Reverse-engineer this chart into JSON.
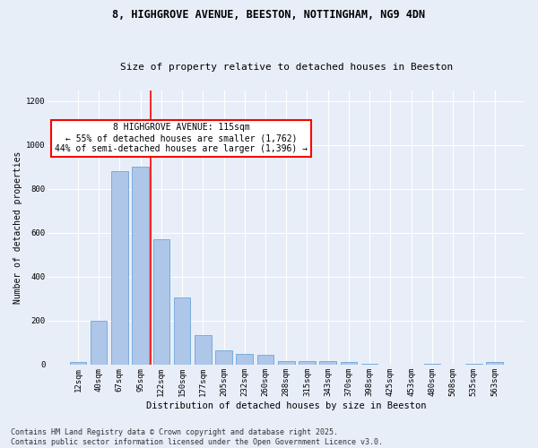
{
  "title1": "8, HIGHGROVE AVENUE, BEESTON, NOTTINGHAM, NG9 4DN",
  "title2": "Size of property relative to detached houses in Beeston",
  "xlabel": "Distribution of detached houses by size in Beeston",
  "ylabel": "Number of detached properties",
  "categories": [
    "12sqm",
    "40sqm",
    "67sqm",
    "95sqm",
    "122sqm",
    "150sqm",
    "177sqm",
    "205sqm",
    "232sqm",
    "260sqm",
    "288sqm",
    "315sqm",
    "343sqm",
    "370sqm",
    "398sqm",
    "425sqm",
    "453sqm",
    "480sqm",
    "508sqm",
    "535sqm",
    "563sqm"
  ],
  "values": [
    10,
    200,
    880,
    900,
    570,
    305,
    135,
    65,
    50,
    45,
    15,
    18,
    18,
    12,
    5,
    0,
    0,
    5,
    0,
    5,
    10
  ],
  "bar_color": "#aec6e8",
  "bar_edge_color": "#5b9bd5",
  "vline_color": "red",
  "vline_pos": 3.5,
  "annotation_text": "8 HIGHGROVE AVENUE: 115sqm\n← 55% of detached houses are smaller (1,762)\n44% of semi-detached houses are larger (1,396) →",
  "annotation_box_color": "white",
  "annotation_box_edgecolor": "red",
  "ylim": [
    0,
    1250
  ],
  "yticks": [
    0,
    200,
    400,
    600,
    800,
    1000,
    1200
  ],
  "footer1": "Contains HM Land Registry data © Crown copyright and database right 2025.",
  "footer2": "Contains public sector information licensed under the Open Government Licence v3.0.",
  "bg_color": "#e8eef8",
  "plot_bg_color": "#e8eef8",
  "grid_color": "#ffffff",
  "title1_fontsize": 8.5,
  "title2_fontsize": 8.0,
  "xlabel_fontsize": 7.5,
  "ylabel_fontsize": 7.0,
  "tick_fontsize": 6.5,
  "annotation_fontsize": 7.0,
  "footer_fontsize": 6.0
}
